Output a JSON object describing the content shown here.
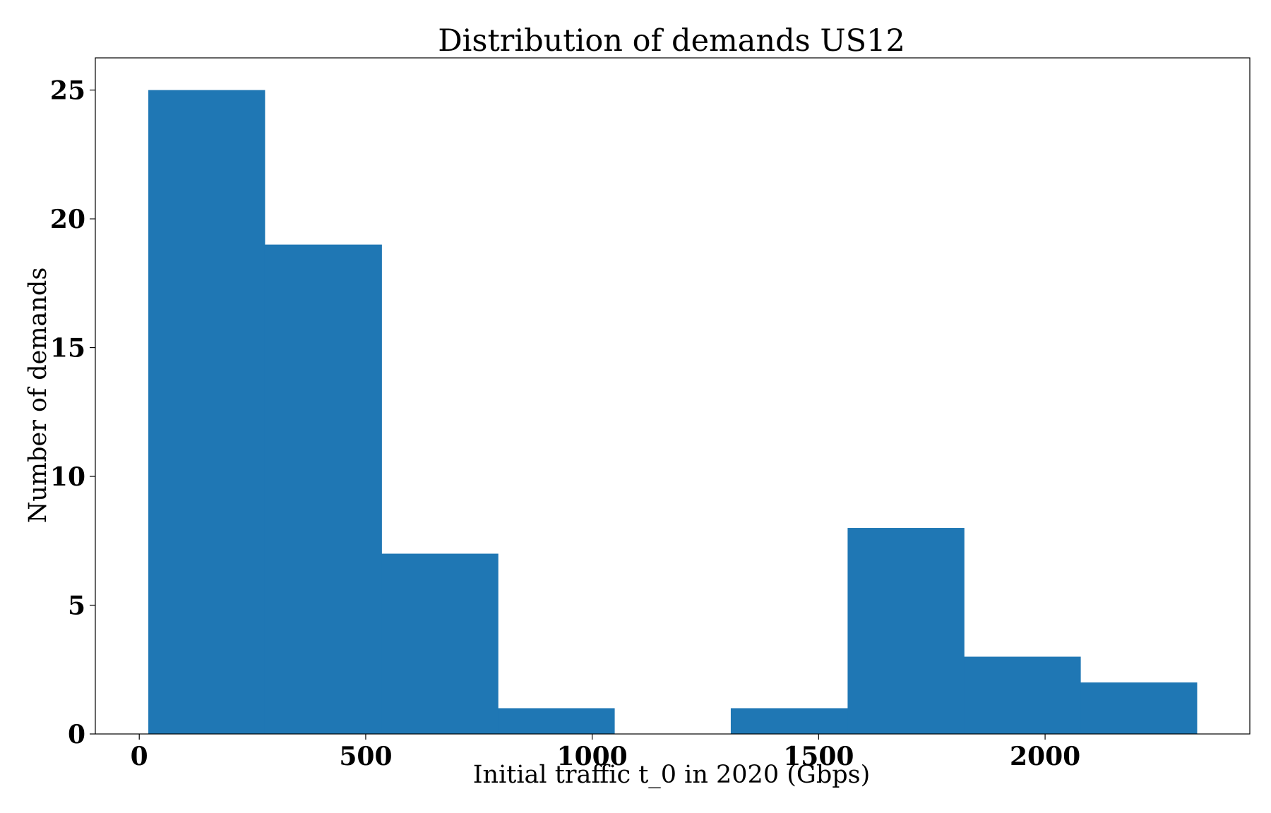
{
  "chart_data": {
    "type": "bar",
    "title": "Distribution of demands US12",
    "xlabel": "Initial traffic t_0 in 2020 (Gbps)",
    "ylabel": "Number of demands",
    "bins": [
      {
        "x0": 20,
        "x1": 277,
        "count": 25
      },
      {
        "x0": 277,
        "x1": 535,
        "count": 19
      },
      {
        "x0": 535,
        "x1": 792,
        "count": 7
      },
      {
        "x0": 792,
        "x1": 1049,
        "count": 1
      },
      {
        "x0": 1049,
        "x1": 1306,
        "count": 0
      },
      {
        "x0": 1306,
        "x1": 1564,
        "count": 1
      },
      {
        "x0": 1564,
        "x1": 1821,
        "count": 8
      },
      {
        "x0": 1821,
        "x1": 2078,
        "count": 3
      },
      {
        "x0": 2078,
        "x1": 2335,
        "count": 2
      }
    ],
    "xticks": [
      0,
      500,
      1000,
      1500,
      2000
    ],
    "yticks": [
      0,
      5,
      10,
      15,
      20,
      25
    ],
    "xlim": [
      -97,
      2452
    ],
    "ylim": [
      0,
      26.25
    ],
    "grid": false,
    "bar_color": "#1f77b4"
  }
}
